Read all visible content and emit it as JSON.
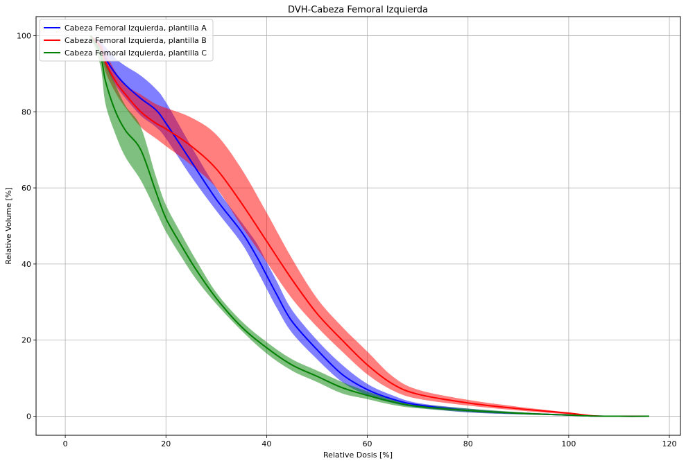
{
  "chart_data": {
    "type": "line",
    "title": "DVH-Cabeza Femoral Izquierda",
    "xlabel": "Relative Dosis [%]",
    "ylabel": "Relative Volume [%]",
    "xlim": [
      -5.8,
      122.2
    ],
    "ylim": [
      -5,
      105
    ],
    "xticks": [
      0,
      20,
      40,
      60,
      80,
      100,
      120
    ],
    "yticks": [
      0,
      20,
      40,
      60,
      80,
      100
    ],
    "xtick_labels": [
      "0",
      "20",
      "40",
      "60",
      "80",
      "100",
      "120"
    ],
    "ytick_labels": [
      "0",
      "20",
      "40",
      "60",
      "80",
      "100"
    ],
    "grid": true,
    "legend_position": "top-left",
    "series": [
      {
        "name": "Cabeza Femoral Izquierda, plantilla A",
        "color": "#0000ff",
        "x": [
          5,
          7,
          8,
          10,
          12,
          15,
          18,
          20,
          25,
          30,
          35,
          38,
          40,
          42,
          45,
          50,
          55,
          60,
          65,
          70,
          80,
          90,
          100,
          105,
          110,
          116
        ],
        "y": [
          100,
          97,
          94,
          90,
          87,
          83.5,
          80.5,
          77,
          67,
          57,
          48.5,
          42,
          37,
          32,
          25,
          17.5,
          11,
          7,
          4.5,
          3,
          1.5,
          0.8,
          0.3,
          0.05,
          0,
          0
        ],
        "upper": [
          100,
          98.5,
          97,
          94,
          92,
          89.5,
          86,
          82.5,
          71,
          60,
          51,
          45.5,
          40.5,
          35.5,
          28,
          20,
          13.5,
          8.5,
          5.5,
          3.5,
          2,
          1,
          0.5,
          0.1,
          0,
          0
        ],
        "lower": [
          100,
          95.5,
          92,
          87,
          83.5,
          79,
          76,
          73,
          63,
          54,
          45.5,
          38.5,
          33.5,
          28.5,
          22,
          15,
          9,
          5.5,
          3.5,
          2.3,
          1,
          0.5,
          0.2,
          0,
          0,
          0
        ]
      },
      {
        "name": "Cabeza Femoral Izquierda, plantilla B",
        "color": "#ff0000",
        "x": [
          5,
          7,
          8,
          10,
          12,
          15,
          18,
          20,
          25,
          30,
          35,
          40,
          45,
          50,
          55,
          60,
          65,
          70,
          80,
          90,
          100,
          105,
          110,
          116
        ],
        "y": [
          100,
          97,
          93,
          88,
          84.5,
          80,
          77,
          75.5,
          71,
          65,
          56,
          46,
          36,
          27,
          20,
          13.5,
          8.5,
          5.8,
          3.5,
          2,
          0.8,
          0.1,
          0,
          0
        ],
        "upper": [
          100,
          98,
          95.5,
          90.5,
          87,
          84.5,
          82,
          81,
          78.5,
          74,
          65,
          53.5,
          41.5,
          31,
          23.5,
          17,
          10.5,
          7,
          4.3,
          2.5,
          1,
          0.2,
          0,
          0
        ],
        "lower": [
          100,
          96,
          90.5,
          85,
          81,
          76,
          73,
          71,
          66,
          60,
          50,
          40.5,
          31,
          23.5,
          17,
          11,
          6.8,
          4.6,
          2.8,
          1.5,
          0.5,
          0,
          0,
          0
        ]
      },
      {
        "name": "Cabeza Femoral Izquierda, plantilla C",
        "color": "#008000",
        "x": [
          5,
          7,
          8,
          10,
          12,
          15,
          18,
          20,
          23,
          26,
          30,
          35,
          40,
          45,
          50,
          55,
          60,
          65,
          70,
          80,
          90,
          100,
          105,
          110,
          116
        ],
        "y": [
          100,
          95,
          88,
          80,
          75,
          70,
          59,
          52,
          45,
          38.5,
          31,
          23.5,
          18,
          13.5,
          10.5,
          7.5,
          5.5,
          3.8,
          2.6,
          1.5,
          0.8,
          0.3,
          0.05,
          0,
          0
        ],
        "upper": [
          100,
          97,
          93,
          87,
          81.5,
          76,
          63,
          55.5,
          48,
          41,
          32.5,
          25,
          19.5,
          15,
          12,
          9,
          6.5,
          4.5,
          3.2,
          2,
          1.1,
          0.4,
          0.1,
          0,
          0
        ],
        "lower": [
          100,
          92,
          82,
          74,
          68,
          62,
          54,
          48.5,
          42,
          36,
          29.5,
          22.5,
          16.5,
          12,
          9,
          6,
          4.5,
          3,
          2.1,
          1.1,
          0.5,
          0.2,
          0,
          0,
          0
        ]
      }
    ]
  }
}
